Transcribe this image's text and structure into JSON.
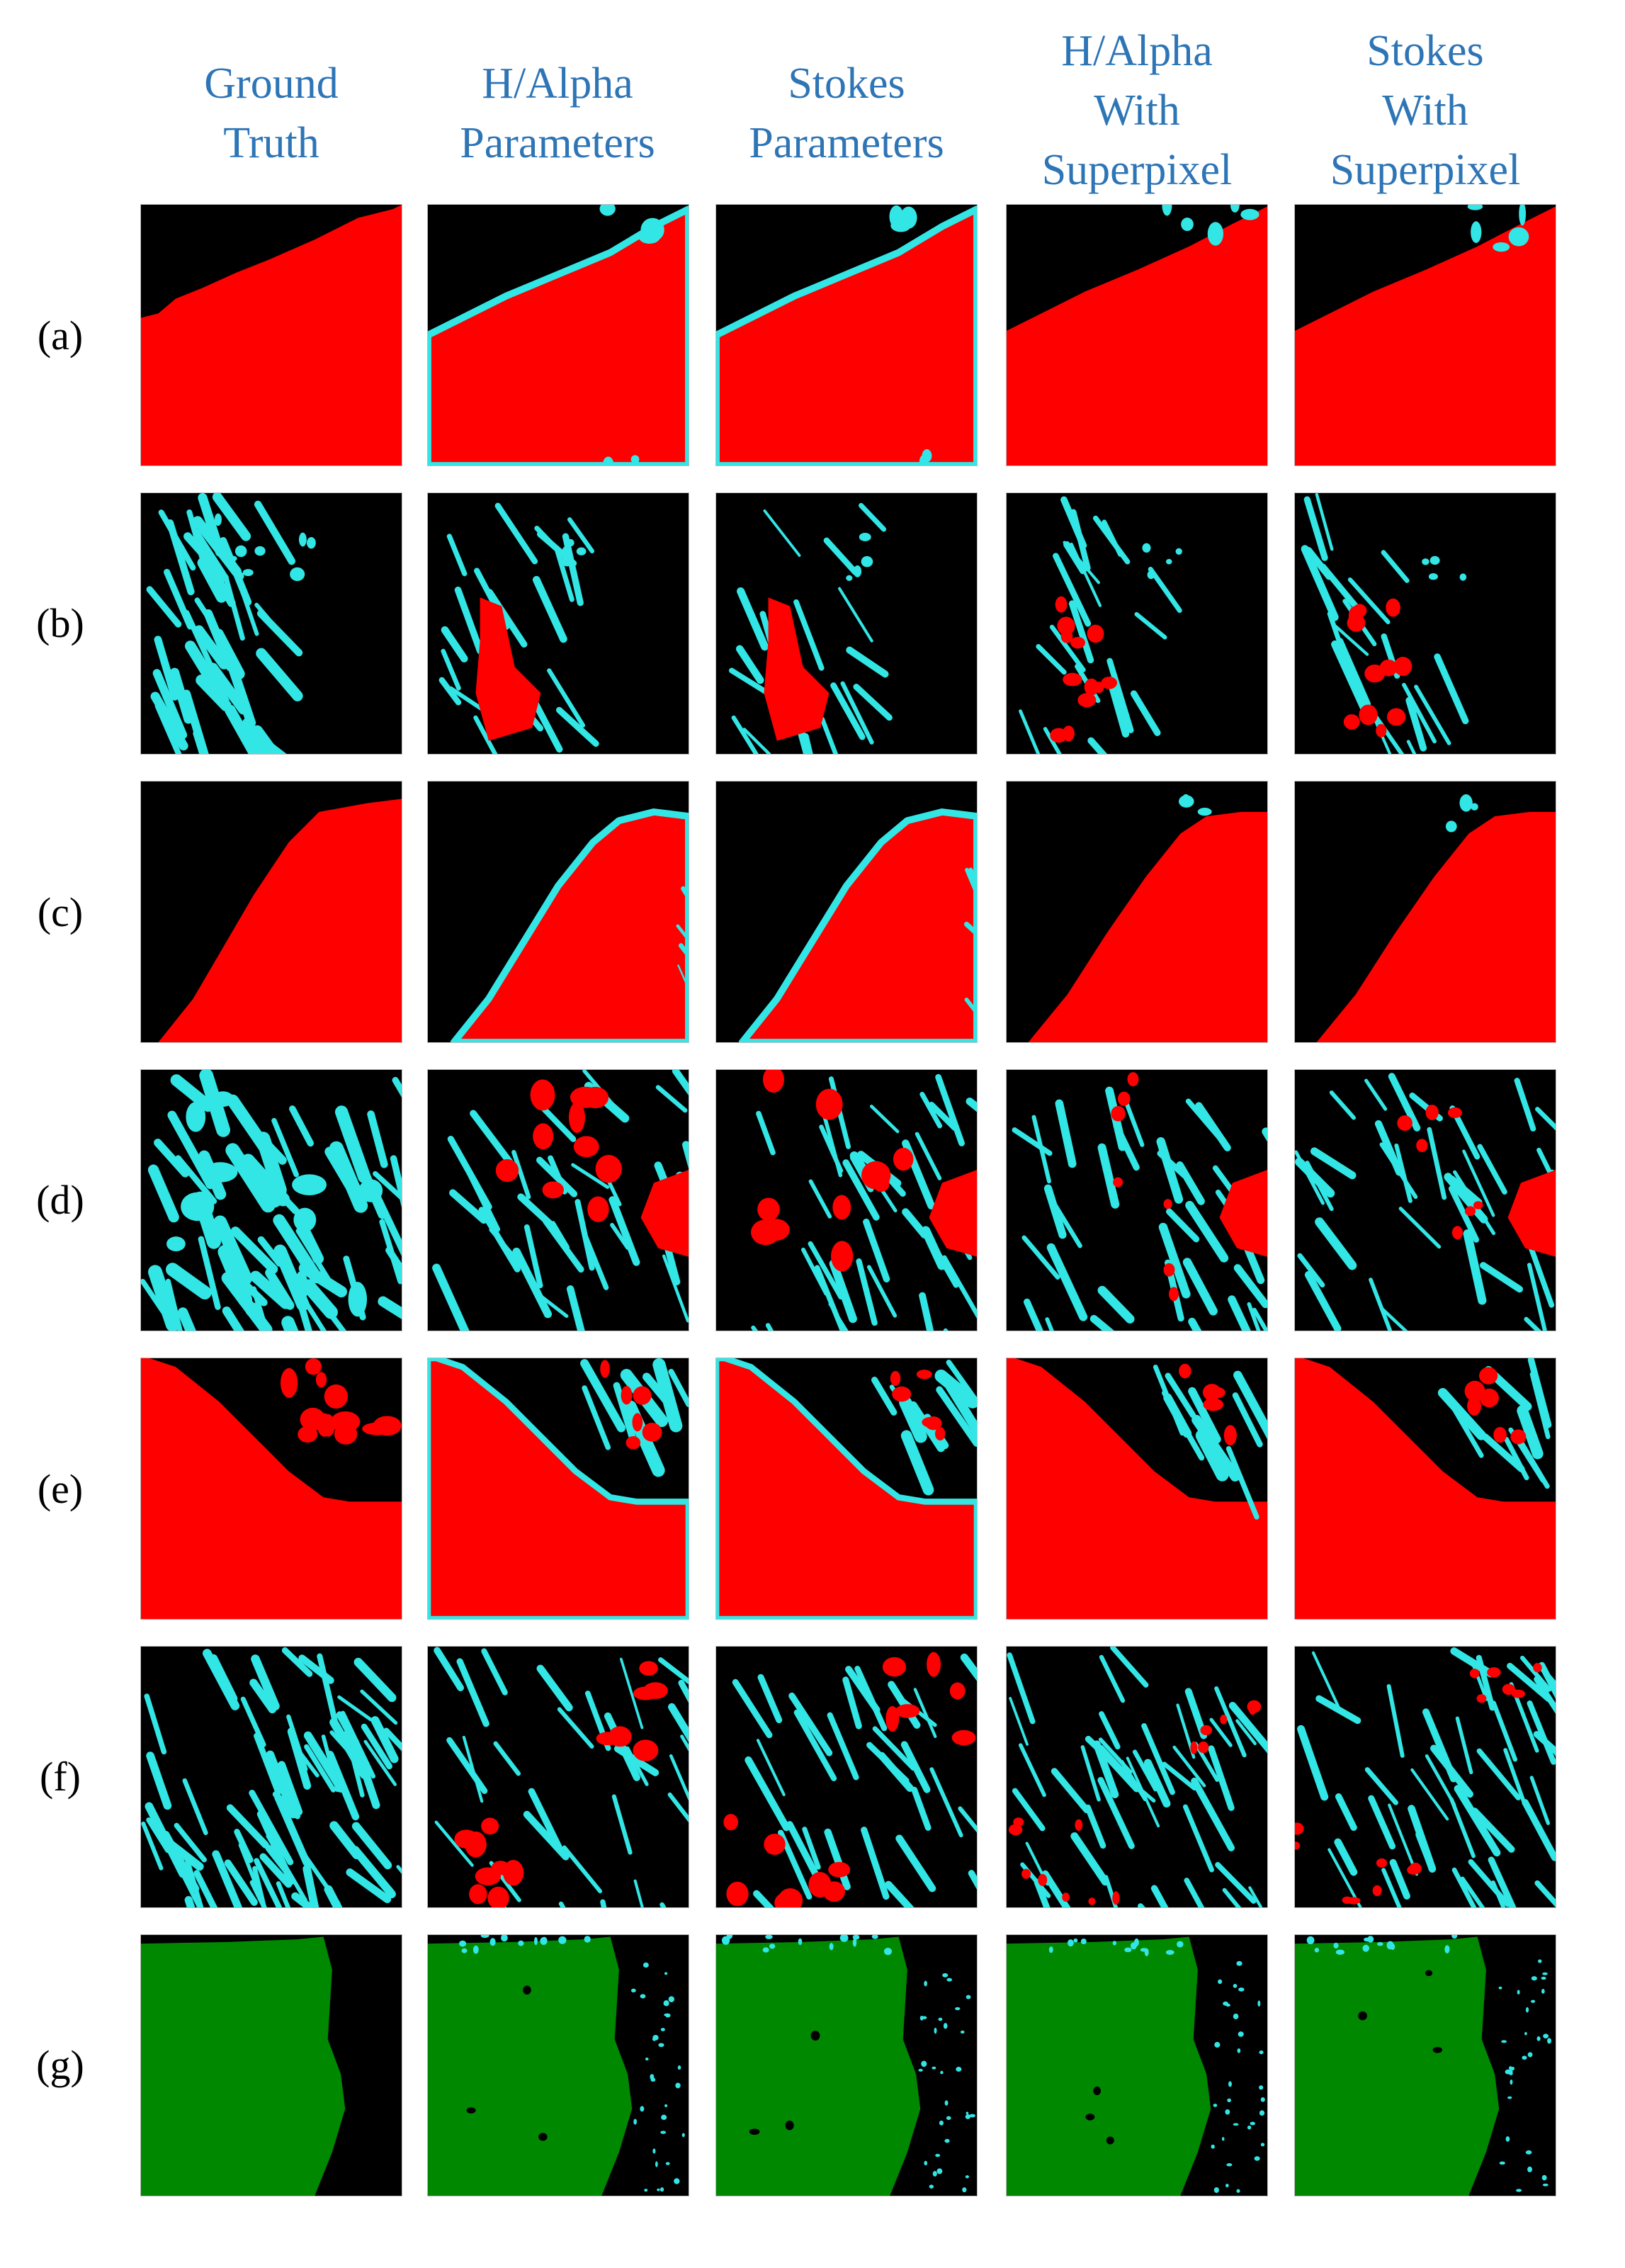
{
  "figure": {
    "columns": [
      {
        "label": "Ground\nTruth"
      },
      {
        "label": "H/Alpha\nParameters"
      },
      {
        "label": "Stokes\nParameters"
      },
      {
        "label": "H/Alpha\nWith\nSuperpixel"
      },
      {
        "label": "Stokes\nWith\nSuperpixel"
      }
    ],
    "rows": [
      {
        "label": "(a)",
        "scene": "a"
      },
      {
        "label": "(b)",
        "scene": "b"
      },
      {
        "label": "(c)",
        "scene": "c"
      },
      {
        "label": "(d)",
        "scene": "d"
      },
      {
        "label": "(e)",
        "scene": "e"
      },
      {
        "label": "(f)",
        "scene": "f"
      },
      {
        "label": "(g)",
        "scene": "g"
      }
    ],
    "colors": {
      "background": "#000000",
      "red": "#ff0000",
      "cyan": "#33e6e6",
      "green": "#008800",
      "header_text": "#2e75b6"
    }
  }
}
